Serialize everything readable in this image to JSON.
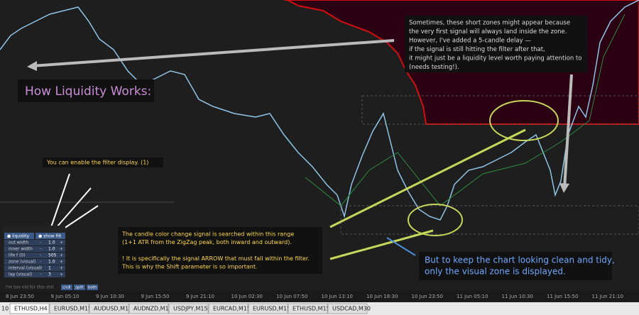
{
  "heading": "How Liquidity Works:",
  "note_top": [
    "Sometimes, these short zones might appear because",
    "the very first signal will always land inside the zone.",
    "However, I've added a 5-candle delay —",
    "if the signal is still hitting the filter after that,",
    "it might just be a liquidity level worth paying attention to",
    "(needs testing!)."
  ],
  "note_filter": "You can enable the filter display. (1)",
  "note_range": [
    "The candle color change signal is searched within this range",
    "(1+1 ATR from the ZigZag peak, both inward and outward).",
    "! It is specifically the signal ARROW that must fall within the filter.",
    "This is why the Shift parameter is so important."
  ],
  "note_clean": [
    "But to keep the chart looking clean and tidy,",
    "only the visual zone is displayed."
  ],
  "panel": {
    "toggles": [
      "● liquidity",
      "● show filt"
    ],
    "rows": [
      [
        "out width",
        "1.0"
      ],
      [
        "inner width",
        "1.0"
      ],
      [
        "life f (0)",
        "505"
      ],
      [
        "zone (visual)",
        "1.0"
      ],
      [
        "interval (visual)",
        "1"
      ],
      [
        "lap (visual)",
        "3"
      ]
    ],
    "minus": "-",
    "plus": "+",
    "footer": "I'm too old for this shit",
    "buttons": [
      "cndl",
      "split",
      "both"
    ]
  },
  "time_axis": [
    "8 Jun 23:50",
    "9 Jun 05:10",
    "9 Jun 10:30",
    "9 Jun 15:50",
    "9 Jun 21:10",
    "10 Jun 02:30",
    "10 Jun 07:50",
    "10 Jun 13:10",
    "10 Jun 18:30",
    "10 Jun 23:50",
    "11 Jun 05:10",
    "11 Jun 10:30",
    "11 Jun 15:50",
    "11 Jun 21:10"
  ],
  "tabs": {
    "first": "10",
    "items": [
      "ETHUSD,H4",
      "EURUSD,M15",
      "AUDUSD,M15",
      "AUDNZD,M15",
      "USDJPY,M15",
      "EURCAD,M15",
      "EURUSD,M15",
      "ETHUSD,M15",
      "USDCAD,M30"
    ]
  }
}
